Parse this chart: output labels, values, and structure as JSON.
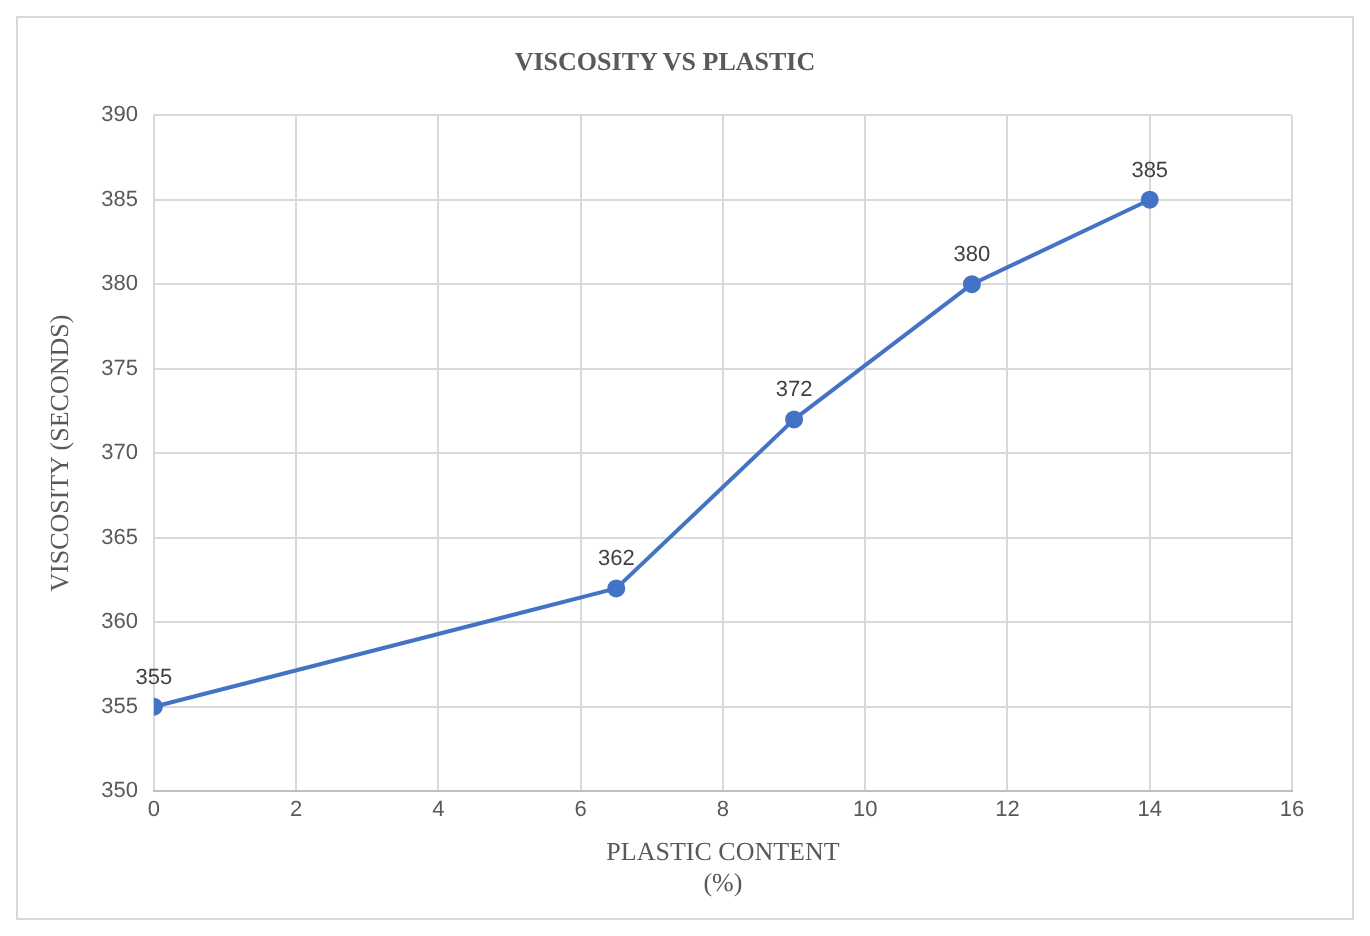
{
  "chart_data": {
    "type": "line",
    "title": "VISCOSITY VS PLASTIC",
    "xlabel": "PLASTIC CONTENT\n(%)",
    "ylabel": "VISCOSITY (SECONDS)",
    "x": [
      0,
      6.5,
      9,
      11.5,
      14
    ],
    "series": [
      {
        "color": "#4472c4",
        "values": [
          355,
          362,
          372,
          380,
          385
        ]
      }
    ],
    "xlim": [
      0,
      16
    ],
    "xticks": [
      0,
      2,
      4,
      6,
      8,
      10,
      12,
      14,
      16
    ],
    "ylim": [
      350,
      390
    ],
    "yticks": [
      350,
      355,
      360,
      365,
      370,
      375,
      380,
      385,
      390
    ],
    "grid": true,
    "marker": "circle",
    "line_style": "solid",
    "data_labels": true,
    "legend": false
  }
}
